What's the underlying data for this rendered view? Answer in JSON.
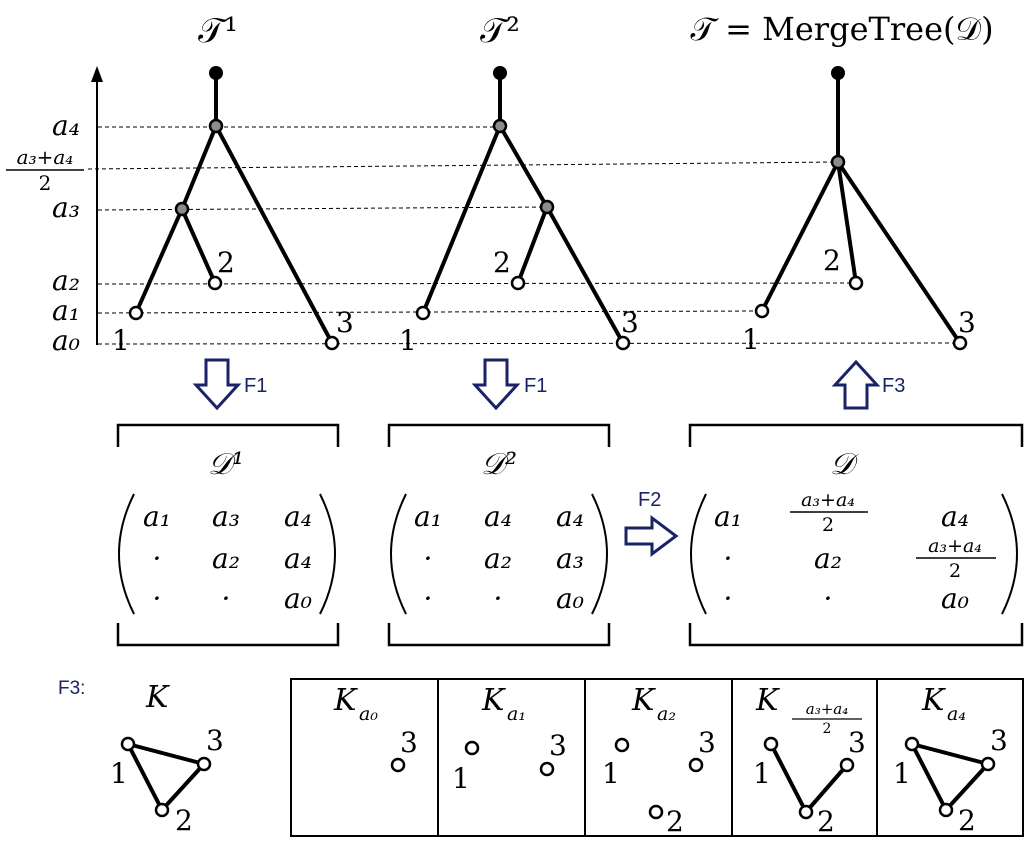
{
  "titles": {
    "t1": "𝒯¹",
    "t2": "𝒯²",
    "t3": "𝒯 = MergeTree(𝒟)"
  },
  "axis": {
    "a4": "a₄",
    "mid_num": "a₃+a₄",
    "mid_den": "2",
    "a3": "a₃",
    "a2": "a₂",
    "a1": "a₁",
    "a0": "a₀"
  },
  "leaf_labels": {
    "one": "1",
    "two": "2",
    "three": "3"
  },
  "arrows": {
    "f1_left": "F1",
    "f1_right": "F1",
    "f2": "F2",
    "f3": "F3"
  },
  "matrices": {
    "d1": {
      "title": "𝒟¹",
      "rows": [
        [
          "a₁",
          "a₃",
          "a₄"
        ],
        [
          "·",
          "a₂",
          "a₄"
        ],
        [
          "·",
          "·",
          "a₀"
        ]
      ]
    },
    "d2": {
      "title": "𝒟²",
      "rows": [
        [
          "a₁",
          "a₄",
          "a₄"
        ],
        [
          "·",
          "a₂",
          "a₃"
        ],
        [
          "·",
          "·",
          "a₀"
        ]
      ]
    },
    "d": {
      "title": "𝒟",
      "r1c1": "a₁",
      "r1c2_num": "a₃+a₄",
      "r1c2_den": "2",
      "r1c3": "a₄",
      "r2c1": "·",
      "r2c2": "a₂",
      "r2c3_num": "a₃+a₄",
      "r2c3_den": "2",
      "r3c1": "·",
      "r3c2": "·",
      "r3c3": "a₀"
    }
  },
  "complexes": {
    "label": "F3:",
    "k": "K",
    "k0_main": "K",
    "k0_sub": "a₀",
    "k1_main": "K",
    "k1_sub": "a₁",
    "k2_main": "K",
    "k2_sub": "a₂",
    "kmid_main": "K",
    "kmid_num": "a₃+a₄",
    "kmid_den": "2",
    "k4_main": "K",
    "k4_sub": "a₄"
  }
}
